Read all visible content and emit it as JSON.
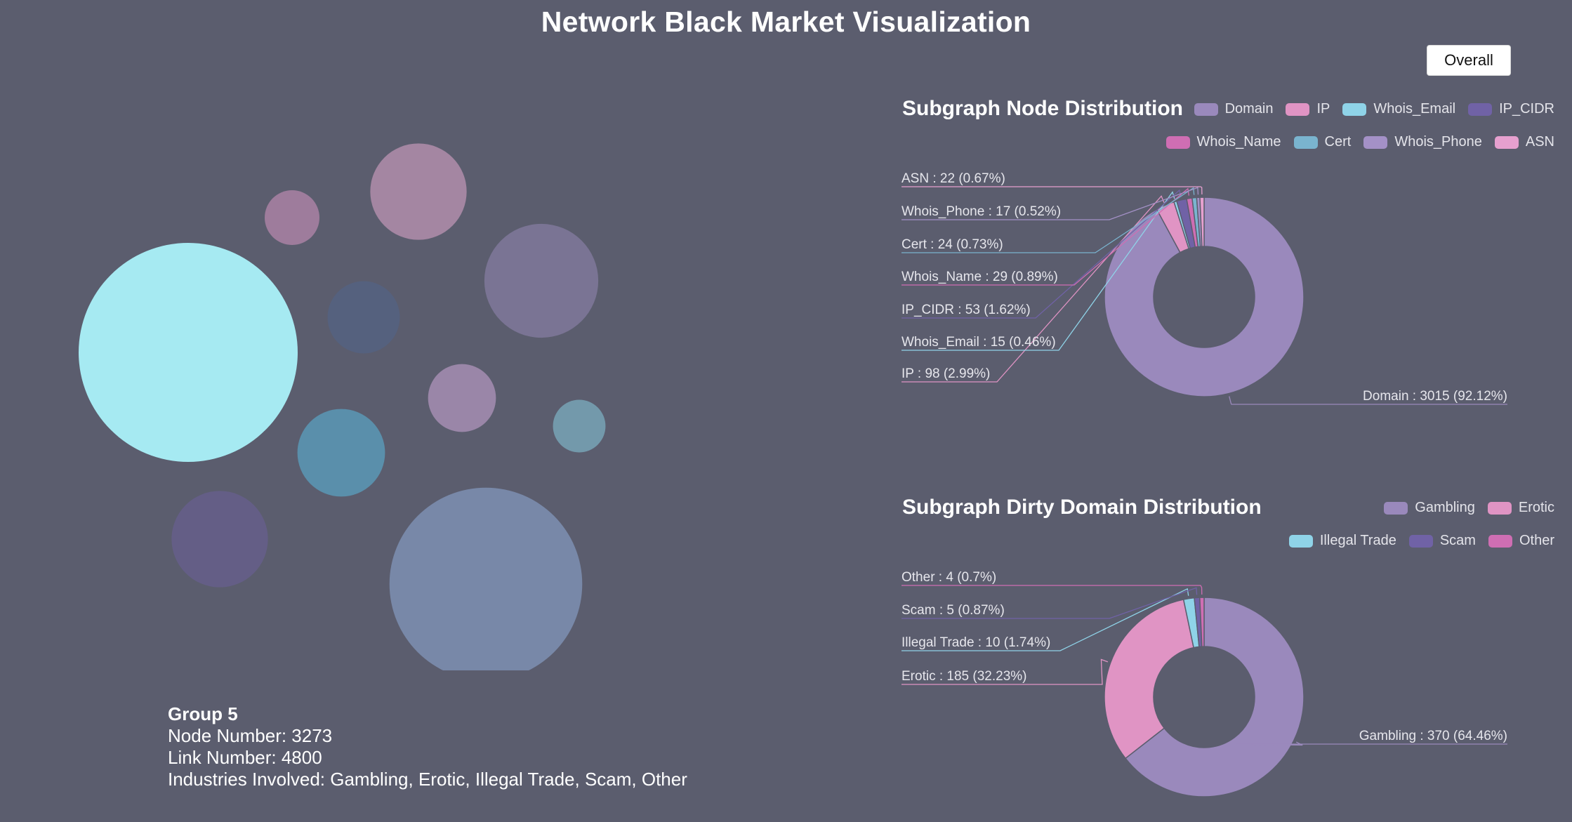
{
  "title": "Network Black Market Visualization",
  "overall_button": "Overall",
  "group": {
    "name": "Group 5",
    "node_line": "Node Number: 3273",
    "link_line": "Link Number: 4800",
    "industries_line": "Industries Involved: Gambling, Erotic, Illegal Trade, Scam, Other"
  },
  "colors": {
    "background": "#5b5d6e",
    "Domain": "#9a89bc",
    "IP": "#e094c4",
    "Whois_Email": "#8fd3e8",
    "IP_CIDR": "#7062a6",
    "Whois_Name": "#cf6eb3",
    "Cert": "#7ab4cf",
    "Whois_Phone": "#a491c7",
    "ASN": "#e6a0cf",
    "Gambling": "#9a89bc",
    "Erotic": "#e094c4",
    "Illegal Trade": "#8fd3e8",
    "Scam": "#7062a6",
    "Other": "#cf6eb3"
  },
  "chart_data": [
    {
      "type": "bubble",
      "bubbles": [
        {
          "value": 100,
          "color": "#a6eaf2"
        },
        {
          "value": 88,
          "color": "#7888a8"
        },
        {
          "value": 52,
          "color": "#7a7494"
        },
        {
          "value": 44,
          "color": "#a486a2"
        },
        {
          "value": 44,
          "color": "#645e86"
        },
        {
          "value": 40,
          "color": "#5a8fab"
        },
        {
          "value": 33,
          "color": "#55617e"
        },
        {
          "value": 31,
          "color": "#9a86a8"
        },
        {
          "value": 25,
          "color": "#9e7c9c"
        },
        {
          "value": 24,
          "color": "#7399ab"
        }
      ]
    },
    {
      "type": "pie",
      "title": "Subgraph Node Distribution",
      "legend": [
        "Domain",
        "IP",
        "Whois_Email",
        "IP_CIDR",
        "Whois_Name",
        "Cert",
        "Whois_Phone",
        "ASN"
      ],
      "slices": [
        {
          "name": "Domain",
          "value": 3015,
          "percent": 92.12,
          "label": "Domain : 3015 (92.12%)"
        },
        {
          "name": "IP",
          "value": 98,
          "percent": 2.99,
          "label": "IP : 98 (2.99%)"
        },
        {
          "name": "Whois_Email",
          "value": 15,
          "percent": 0.46,
          "label": "Whois_Email : 15 (0.46%)"
        },
        {
          "name": "IP_CIDR",
          "value": 53,
          "percent": 1.62,
          "label": "IP_CIDR : 53 (1.62%)"
        },
        {
          "name": "Whois_Name",
          "value": 29,
          "percent": 0.89,
          "label": "Whois_Name : 29 (0.89%)"
        },
        {
          "name": "Cert",
          "value": 24,
          "percent": 0.73,
          "label": "Cert : 24 (0.73%)"
        },
        {
          "name": "Whois_Phone",
          "value": 17,
          "percent": 0.52,
          "label": "Whois_Phone : 17 (0.52%)"
        },
        {
          "name": "ASN",
          "value": 22,
          "percent": 0.67,
          "label": "ASN : 22 (0.67%)"
        }
      ]
    },
    {
      "type": "pie",
      "title": "Subgraph Dirty Domain Distribution",
      "legend": [
        "Gambling",
        "Erotic",
        "Illegal Trade",
        "Scam",
        "Other"
      ],
      "slices": [
        {
          "name": "Gambling",
          "value": 370,
          "percent": 64.46,
          "label": "Gambling : 370 (64.46%)"
        },
        {
          "name": "Erotic",
          "value": 185,
          "percent": 32.23,
          "label": "Erotic : 185 (32.23%)"
        },
        {
          "name": "Illegal Trade",
          "value": 10,
          "percent": 1.74,
          "label": "Illegal Trade : 10 (1.74%)"
        },
        {
          "name": "Scam",
          "value": 5,
          "percent": 0.87,
          "label": "Scam : 5 (0.87%)"
        },
        {
          "name": "Other",
          "value": 4,
          "percent": 0.7,
          "label": "Other : 4 (0.7%)"
        }
      ]
    }
  ]
}
